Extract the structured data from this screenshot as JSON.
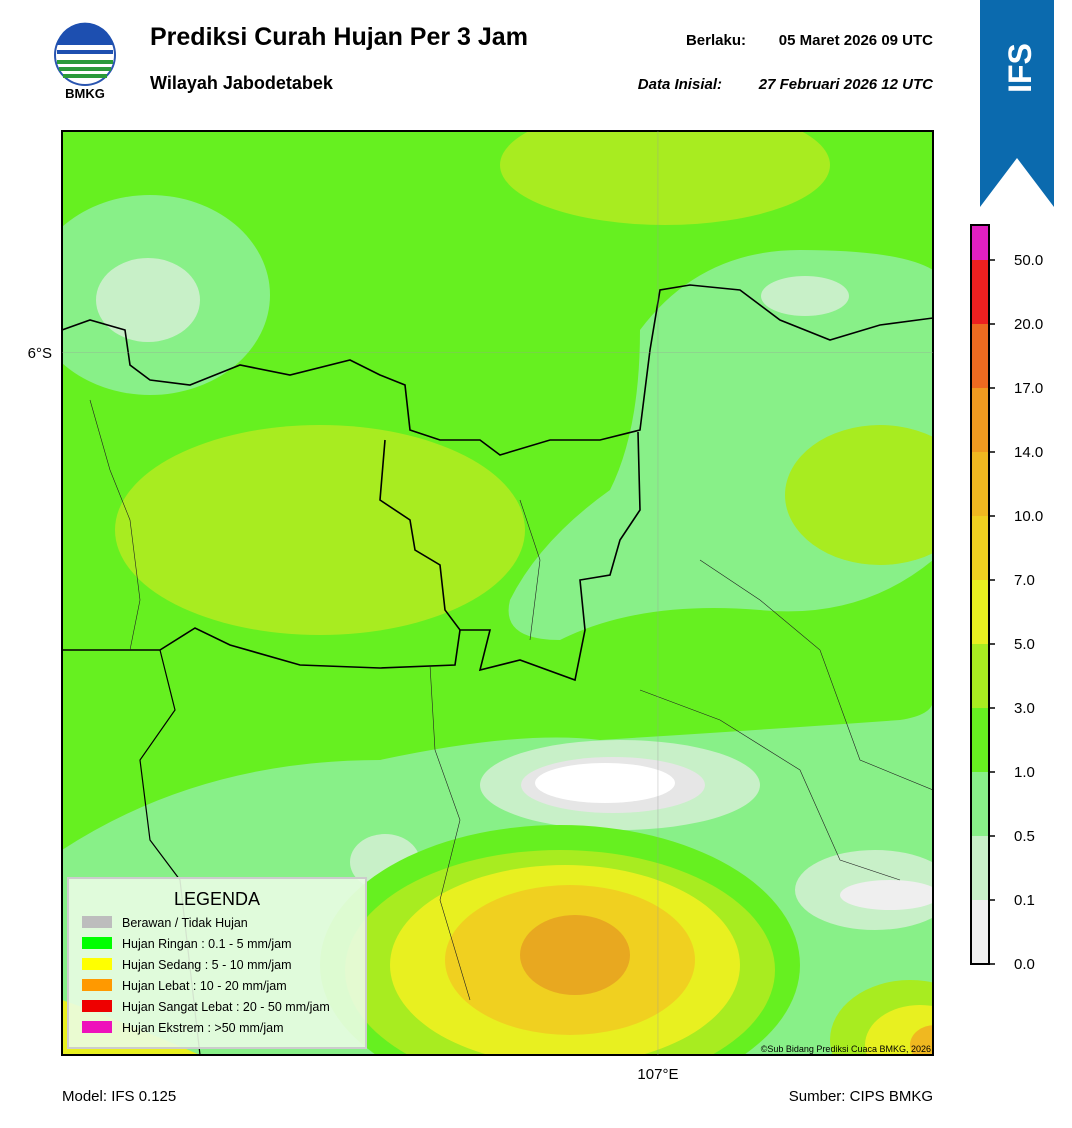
{
  "header": {
    "title": "Prediksi Curah Hujan Per 3 Jam",
    "subtitle": "Wilayah Jabodetabek",
    "logo_text": "BMKG",
    "valid_label": "Berlaku:",
    "valid_value": "05 Maret 2026 09 UTC",
    "init_label": "Data Inisial:",
    "init_value": "27 Februari 2026 12 UTC",
    "badge": "IFS"
  },
  "map": {
    "xlim": [
      106.35,
      107.3
    ],
    "ylim": [
      -6.95,
      -5.7
    ],
    "xticks": [
      {
        "value": 107,
        "label": "107°E"
      }
    ],
    "yticks": [
      {
        "value": -6,
        "label": "6°S"
      }
    ],
    "grid": true,
    "credit": "©Sub Bidang Prediksi Cuaca BMKG, 2026"
  },
  "legend": {
    "title": "LEGENDA",
    "items": [
      {
        "label": "Berawan / Tidak Hujan",
        "color": "#bdbdbd"
      },
      {
        "label": "Hujan Ringan : 0.1 - 5 mm/jam",
        "color": "#00ff00"
      },
      {
        "label": "Hujan Sedang : 5 - 10 mm/jam",
        "color": "#ffff00"
      },
      {
        "label": "Hujan Lebat : 10 - 20 mm/jam",
        "color": "#ff9900"
      },
      {
        "label": "Hujan Sangat Lebat : 20 - 50 mm/jam",
        "color": "#ee0000"
      },
      {
        "label": "Hujan Ekstrem : >50 mm/jam",
        "color": "#ee11bb"
      }
    ]
  },
  "colorbar": {
    "ticks": [
      {
        "value": 0,
        "label": "0.0"
      },
      {
        "value": 0.1,
        "label": "0.1"
      },
      {
        "value": 0.5,
        "label": "0.5"
      },
      {
        "value": 1,
        "label": "1.0"
      },
      {
        "value": 3,
        "label": "3.0"
      },
      {
        "value": 5,
        "label": "5.0"
      },
      {
        "value": 7,
        "label": "7.0"
      },
      {
        "value": 10,
        "label": "10.0"
      },
      {
        "value": 14,
        "label": "14.0"
      },
      {
        "value": 17,
        "label": "17.0"
      },
      {
        "value": 20,
        "label": "20.0"
      },
      {
        "value": 50,
        "label": "50.0"
      }
    ],
    "colors": [
      "#efefef",
      "#c8f0c8",
      "#88f088",
      "#66f020",
      "#a8ec20",
      "#e8f020",
      "#f0d020",
      "#f0b820",
      "#f09a20",
      "#ee6a20",
      "#ee2020",
      "#e020c0"
    ]
  },
  "footer": {
    "model": "Model: IFS 0.125",
    "source": "Sumber: CIPS BMKG"
  }
}
